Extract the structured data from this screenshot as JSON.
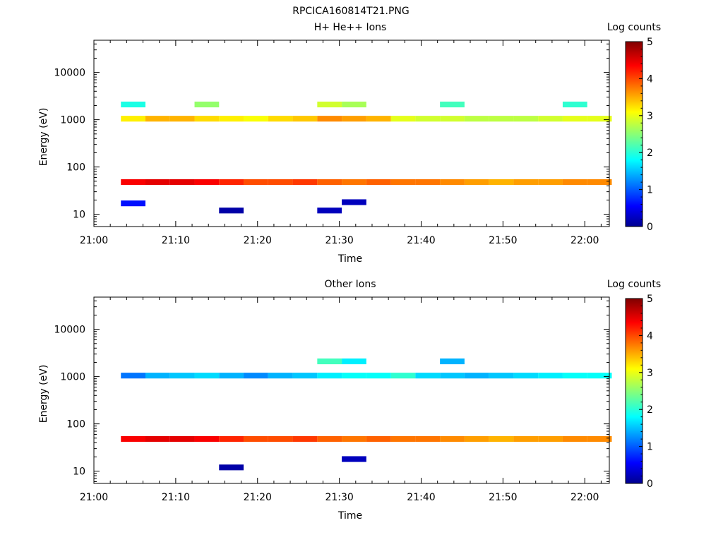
{
  "figure_title": "RPCICA160814T21.PNG",
  "colors": {
    "colormap": "jet",
    "axis": "#000000"
  },
  "chart_data": [
    {
      "type": "heatmap",
      "title": "H+ He++ Ions",
      "xlabel": "Time",
      "ylabel": "Energy (eV)",
      "colorbar_label": "Log counts",
      "x_ticks": [
        "21:00",
        "21:10",
        "21:20",
        "21:30",
        "21:40",
        "21:50",
        "22:00"
      ],
      "x_range_minutes": [
        0,
        63
      ],
      "y_scale": "log",
      "y_range": [
        5.5,
        48000
      ],
      "y_ticks": [
        "10",
        "100",
        "1000",
        "10000"
      ],
      "colorbar_range": [
        0,
        5
      ],
      "colorbar_ticks": [
        "0",
        "1",
        "2",
        "3",
        "4",
        "5"
      ],
      "time_bins_minutes": [
        3.3,
        6.3,
        9.3,
        12.3,
        15.3,
        18.3,
        21.3,
        24.3,
        27.3,
        30.3,
        33.3,
        36.3,
        39.3,
        42.3,
        45.3,
        48.3,
        51.3,
        54.3,
        57.3,
        60.3
      ],
      "cells": [
        {
          "t": 0,
          "e": 48,
          "v": 4.4
        },
        {
          "t": 1,
          "e": 48,
          "v": 4.5
        },
        {
          "t": 2,
          "e": 48,
          "v": 4.5
        },
        {
          "t": 3,
          "e": 48,
          "v": 4.4
        },
        {
          "t": 4,
          "e": 48,
          "v": 4.2
        },
        {
          "t": 5,
          "e": 48,
          "v": 4.0
        },
        {
          "t": 6,
          "e": 48,
          "v": 4.0
        },
        {
          "t": 7,
          "e": 48,
          "v": 4.1
        },
        {
          "t": 8,
          "e": 48,
          "v": 3.9
        },
        {
          "t": 9,
          "e": 48,
          "v": 3.8
        },
        {
          "t": 10,
          "e": 48,
          "v": 3.9
        },
        {
          "t": 11,
          "e": 48,
          "v": 3.8
        },
        {
          "t": 12,
          "e": 48,
          "v": 3.8
        },
        {
          "t": 13,
          "e": 48,
          "v": 3.7
        },
        {
          "t": 14,
          "e": 48,
          "v": 3.6
        },
        {
          "t": 15,
          "e": 48,
          "v": 3.5
        },
        {
          "t": 16,
          "e": 48,
          "v": 3.6
        },
        {
          "t": 17,
          "e": 48,
          "v": 3.6
        },
        {
          "t": 18,
          "e": 48,
          "v": 3.7
        },
        {
          "t": 19,
          "e": 48,
          "v": 3.7
        },
        {
          "t": 0,
          "e": 1050,
          "v": 3.2
        },
        {
          "t": 1,
          "e": 1050,
          "v": 3.5
        },
        {
          "t": 2,
          "e": 1050,
          "v": 3.5
        },
        {
          "t": 3,
          "e": 1050,
          "v": 3.3
        },
        {
          "t": 4,
          "e": 1050,
          "v": 3.2
        },
        {
          "t": 5,
          "e": 1050,
          "v": 3.1
        },
        {
          "t": 6,
          "e": 1050,
          "v": 3.3
        },
        {
          "t": 7,
          "e": 1050,
          "v": 3.4
        },
        {
          "t": 8,
          "e": 1050,
          "v": 3.7
        },
        {
          "t": 9,
          "e": 1050,
          "v": 3.6
        },
        {
          "t": 10,
          "e": 1050,
          "v": 3.5
        },
        {
          "t": 11,
          "e": 1050,
          "v": 3.0
        },
        {
          "t": 12,
          "e": 1050,
          "v": 2.9
        },
        {
          "t": 13,
          "e": 1050,
          "v": 2.9
        },
        {
          "t": 14,
          "e": 1050,
          "v": 2.8
        },
        {
          "t": 15,
          "e": 1050,
          "v": 2.8
        },
        {
          "t": 16,
          "e": 1050,
          "v": 2.8
        },
        {
          "t": 17,
          "e": 1050,
          "v": 2.9
        },
        {
          "t": 18,
          "e": 1050,
          "v": 3.0
        },
        {
          "t": 19,
          "e": 1050,
          "v": 3.0
        },
        {
          "t": 0,
          "e": 2100,
          "v": 2.0
        },
        {
          "t": 3,
          "e": 2100,
          "v": 2.6
        },
        {
          "t": 8,
          "e": 2100,
          "v": 2.9
        },
        {
          "t": 9,
          "e": 2100,
          "v": 2.7
        },
        {
          "t": 13,
          "e": 2100,
          "v": 2.2
        },
        {
          "t": 18,
          "e": 2100,
          "v": 2.1
        },
        {
          "t": 0,
          "e": 17,
          "v": 0.7
        },
        {
          "t": 4,
          "e": 12,
          "v": 0.2
        },
        {
          "t": 8,
          "e": 12,
          "v": 0.3
        },
        {
          "t": 9,
          "e": 18,
          "v": 0.3
        }
      ]
    },
    {
      "type": "heatmap",
      "title": "Other Ions",
      "xlabel": "Time",
      "ylabel": "Energy (eV)",
      "colorbar_label": "Log counts",
      "x_ticks": [
        "21:00",
        "21:10",
        "21:20",
        "21:30",
        "21:40",
        "21:50",
        "22:00"
      ],
      "x_range_minutes": [
        0,
        63
      ],
      "y_scale": "log",
      "y_range": [
        5.5,
        48000
      ],
      "y_ticks": [
        "10",
        "100",
        "1000",
        "10000"
      ],
      "colorbar_range": [
        0,
        5
      ],
      "colorbar_ticks": [
        "0",
        "1",
        "2",
        "3",
        "4",
        "5"
      ],
      "time_bins_minutes": [
        3.3,
        6.3,
        9.3,
        12.3,
        15.3,
        18.3,
        21.3,
        24.3,
        27.3,
        30.3,
        33.3,
        36.3,
        39.3,
        42.3,
        45.3,
        48.3,
        51.3,
        54.3,
        57.3,
        60.3
      ],
      "cells": [
        {
          "t": 0,
          "e": 48,
          "v": 4.4
        },
        {
          "t": 1,
          "e": 48,
          "v": 4.5
        },
        {
          "t": 2,
          "e": 48,
          "v": 4.5
        },
        {
          "t": 3,
          "e": 48,
          "v": 4.4
        },
        {
          "t": 4,
          "e": 48,
          "v": 4.2
        },
        {
          "t": 5,
          "e": 48,
          "v": 4.0
        },
        {
          "t": 6,
          "e": 48,
          "v": 4.0
        },
        {
          "t": 7,
          "e": 48,
          "v": 4.1
        },
        {
          "t": 8,
          "e": 48,
          "v": 3.9
        },
        {
          "t": 9,
          "e": 48,
          "v": 3.8
        },
        {
          "t": 10,
          "e": 48,
          "v": 3.9
        },
        {
          "t": 11,
          "e": 48,
          "v": 3.8
        },
        {
          "t": 12,
          "e": 48,
          "v": 3.8
        },
        {
          "t": 13,
          "e": 48,
          "v": 3.7
        },
        {
          "t": 14,
          "e": 48,
          "v": 3.6
        },
        {
          "t": 15,
          "e": 48,
          "v": 3.5
        },
        {
          "t": 16,
          "e": 48,
          "v": 3.6
        },
        {
          "t": 17,
          "e": 48,
          "v": 3.6
        },
        {
          "t": 18,
          "e": 48,
          "v": 3.7
        },
        {
          "t": 19,
          "e": 48,
          "v": 3.7
        },
        {
          "t": 0,
          "e": 1050,
          "v": 1.2
        },
        {
          "t": 1,
          "e": 1050,
          "v": 1.5
        },
        {
          "t": 2,
          "e": 1050,
          "v": 1.6
        },
        {
          "t": 3,
          "e": 1050,
          "v": 1.7
        },
        {
          "t": 4,
          "e": 1050,
          "v": 1.5
        },
        {
          "t": 5,
          "e": 1050,
          "v": 1.3
        },
        {
          "t": 6,
          "e": 1050,
          "v": 1.5
        },
        {
          "t": 7,
          "e": 1050,
          "v": 1.6
        },
        {
          "t": 8,
          "e": 1050,
          "v": 1.8
        },
        {
          "t": 9,
          "e": 1050,
          "v": 1.9
        },
        {
          "t": 10,
          "e": 1050,
          "v": 1.9
        },
        {
          "t": 11,
          "e": 1050,
          "v": 2.1
        },
        {
          "t": 12,
          "e": 1050,
          "v": 1.7
        },
        {
          "t": 13,
          "e": 1050,
          "v": 1.6
        },
        {
          "t": 14,
          "e": 1050,
          "v": 1.5
        },
        {
          "t": 15,
          "e": 1050,
          "v": 1.6
        },
        {
          "t": 16,
          "e": 1050,
          "v": 1.7
        },
        {
          "t": 17,
          "e": 1050,
          "v": 1.8
        },
        {
          "t": 18,
          "e": 1050,
          "v": 1.9
        },
        {
          "t": 19,
          "e": 1050,
          "v": 1.9
        },
        {
          "t": 8,
          "e": 2100,
          "v": 2.2
        },
        {
          "t": 9,
          "e": 2100,
          "v": 1.8
        },
        {
          "t": 13,
          "e": 2100,
          "v": 1.5
        },
        {
          "t": 4,
          "e": 12,
          "v": 0.2
        },
        {
          "t": 9,
          "e": 18,
          "v": 0.3
        }
      ]
    }
  ]
}
